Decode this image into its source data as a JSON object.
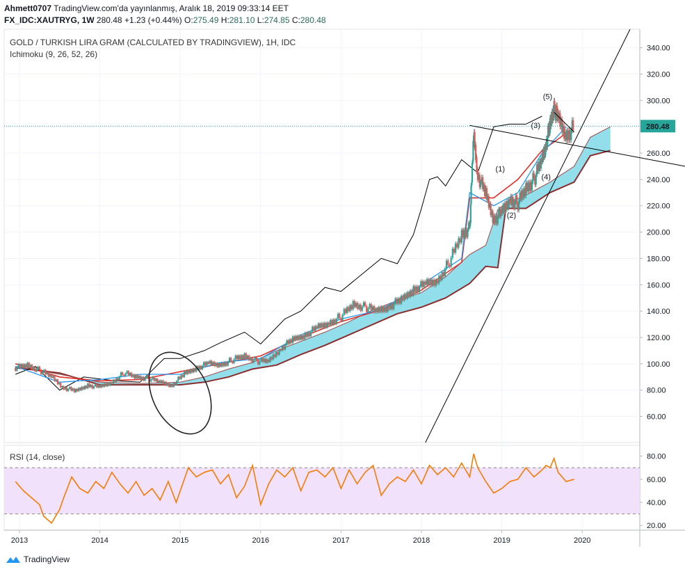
{
  "header": {
    "author": "Ahmett0707",
    "published": "TradingView.com'da yayınlanmış, Aralık 18, 2019 09:33:14 EET",
    "symbol": "FX_IDC:XAUTRYG, 1W",
    "last": "280.48",
    "change": "+1.23 (+0.44%)",
    "o_label": "O:",
    "o": "275.49",
    "h_label": "H:",
    "h": "281.10",
    "l_label": "L:",
    "l": "274.85",
    "c_label": "C:",
    "c": "280.48"
  },
  "brand": "TradingView",
  "colors": {
    "bull": "#26a69a",
    "bear": "#ef5350",
    "cloud": "#7fd8e8",
    "kijun": "#e0302a",
    "tenkan": "#2196f3",
    "chikou": "#000000",
    "senkou_b": "#8b2d2d",
    "rsi": "#f57c00",
    "rsi_band": "#f1e1fb",
    "price_line": "#26a69a"
  },
  "chart_data": [
    {
      "type": "line",
      "title": "GOLD / TURKISH LIRA GRAM (CALCULATED BY TRADINGVIEW), 1H, IDC",
      "indicator": "Ichimoku (9, 26, 52, 26)",
      "xlabel": "",
      "ylabel": "",
      "ylim": [
        40,
        350
      ],
      "x_ticks": [
        "2013",
        "2014",
        "2015",
        "2016",
        "2017",
        "2018",
        "2019",
        "2020"
      ],
      "y_ticks": [
        "60.00",
        "80.00",
        "100.00",
        "120.00",
        "140.00",
        "160.00",
        "180.00",
        "200.00",
        "220.00",
        "240.00",
        "260.00",
        "280.00",
        "300.00",
        "320.00",
        "340.00"
      ],
      "last_price_label": "280.48",
      "last_price": 280.48,
      "price_series": {
        "x": [
          2012.95,
          2013.1,
          2013.25,
          2013.4,
          2013.55,
          2013.7,
          2013.85,
          2014.0,
          2014.15,
          2014.3,
          2014.45,
          2014.6,
          2014.75,
          2014.9,
          2015.05,
          2015.2,
          2015.35,
          2015.5,
          2015.65,
          2015.8,
          2015.95,
          2016.1,
          2016.25,
          2016.4,
          2016.55,
          2016.7,
          2016.85,
          2017.0,
          2017.15,
          2017.3,
          2017.45,
          2017.6,
          2017.75,
          2017.9,
          2018.05,
          2018.2,
          2018.35,
          2018.5,
          2018.6,
          2018.65,
          2018.7,
          2018.8,
          2018.9,
          2019.0,
          2019.1,
          2019.2,
          2019.3,
          2019.4,
          2019.5,
          2019.55,
          2019.6,
          2019.65,
          2019.7,
          2019.8,
          2019.9
        ],
        "y": [
          97,
          99,
          95,
          90,
          82,
          79,
          84,
          82,
          86,
          93,
          90,
          89,
          86,
          84,
          92,
          97,
          100,
          99,
          103,
          106,
          102,
          102,
          112,
          118,
          122,
          127,
          131,
          136,
          145,
          143,
          140,
          144,
          148,
          157,
          160,
          163,
          178,
          198,
          203,
          275,
          244,
          228,
          210,
          214,
          225,
          222,
          233,
          240,
          255,
          268,
          280,
          296,
          285,
          273,
          280
        ]
      },
      "ichimoku": {
        "span_a": {
          "x": [
            2012.95,
            2013.5,
            2014.0,
            2014.5,
            2015.0,
            2015.3,
            2015.6,
            2015.9,
            2016.2,
            2016.5,
            2016.8,
            2017.1,
            2017.4,
            2017.7,
            2018.0,
            2018.3,
            2018.6,
            2018.8,
            2018.95,
            2019.05,
            2019.3,
            2019.6,
            2019.9,
            2020.1,
            2020.35
          ],
          "y": [
            98,
            92,
            86,
            85,
            86,
            90,
            96,
            101,
            110,
            117,
            124,
            132,
            141,
            148,
            154,
            166,
            183,
            190,
            217,
            222,
            228,
            238,
            250,
            272,
            280
          ]
        },
        "span_b": {
          "x": [
            2012.95,
            2013.5,
            2014.0,
            2014.5,
            2015.0,
            2015.3,
            2015.6,
            2015.9,
            2016.2,
            2016.5,
            2016.8,
            2017.1,
            2017.4,
            2017.7,
            2018.0,
            2018.3,
            2018.6,
            2018.8,
            2018.95,
            2019.05,
            2019.3,
            2019.6,
            2019.9,
            2020.1,
            2020.35
          ],
          "y": [
            97,
            93,
            84,
            84,
            84,
            86,
            90,
            96,
            99,
            107,
            114,
            122,
            130,
            138,
            143,
            150,
            161,
            174,
            173,
            218,
            218,
            230,
            238,
            258,
            262
          ]
        },
        "kijun": {
          "x": [
            2012.95,
            2013.5,
            2014.0,
            2014.5,
            2015.0,
            2015.5,
            2016.0,
            2016.5,
            2017.0,
            2017.5,
            2018.0,
            2018.5,
            2018.6,
            2018.9,
            2019.2,
            2019.5,
            2019.8
          ],
          "y": [
            100,
            90,
            87,
            88,
            94,
            100,
            106,
            120,
            132,
            141,
            156,
            177,
            226,
            226,
            240,
            262,
            275
          ]
        },
        "tenkan": {
          "x": [
            2012.95,
            2013.5,
            2014.0,
            2014.5,
            2015.0,
            2015.5,
            2016.0,
            2016.5,
            2017.0,
            2017.5,
            2018.0,
            2018.5,
            2018.6,
            2018.9,
            2019.2,
            2019.5,
            2019.8
          ],
          "y": [
            98,
            86,
            88,
            92,
            92,
            101,
            104,
            122,
            134,
            141,
            160,
            180,
            230,
            220,
            230,
            260,
            280
          ]
        },
        "chikou": {
          "x": [
            2012.95,
            2013.2,
            2013.5,
            2013.8,
            2014.2,
            2014.5,
            2014.8,
            2015.0,
            2015.3,
            2015.5,
            2015.8,
            2016.0,
            2016.3,
            2016.5,
            2016.8,
            2017.0,
            2017.3,
            2017.5,
            2017.7,
            2017.9,
            2018.0,
            2018.1,
            2018.2,
            2018.3,
            2018.5,
            2018.7,
            2018.9,
            2019.1,
            2019.3,
            2019.5
          ],
          "y": [
            92,
            98,
            80,
            90,
            87,
            86,
            104,
            104,
            110,
            116,
            124,
            115,
            134,
            140,
            158,
            155,
            170,
            180,
            176,
            198,
            218,
            240,
            242,
            235,
            255,
            245,
            280,
            282,
            282,
            288
          ]
        }
      },
      "annotations": [
        {
          "label": "(1)",
          "x": 2018.98,
          "y": 246
        },
        {
          "label": "(2)",
          "x": 2019.12,
          "y": 211
        },
        {
          "label": "(3)",
          "x": 2019.42,
          "y": 279
        },
        {
          "label": "(4)",
          "x": 2019.55,
          "y": 240
        },
        {
          "label": "(5)",
          "x": 2019.57,
          "y": 301
        }
      ]
    },
    {
      "type": "line",
      "title": "",
      "indicator": "RSI (14, close)",
      "xlabel": "",
      "ylabel": "",
      "ylim": [
        16,
        86
      ],
      "y_ticks": [
        "20.00",
        "40.00",
        "60.00",
        "80.00"
      ],
      "bands": [
        30,
        70
      ],
      "series": [
        {
          "x": [
            2012.95,
            2013.05,
            2013.15,
            2013.25,
            2013.3,
            2013.4,
            2013.5,
            2013.55,
            2013.65,
            2013.75,
            2013.85,
            2013.95,
            2014.05,
            2014.15,
            2014.25,
            2014.35,
            2014.45,
            2014.55,
            2014.65,
            2014.75,
            2014.85,
            2014.95,
            2015.0,
            2015.1,
            2015.2,
            2015.3,
            2015.4,
            2015.5,
            2015.6,
            2015.7,
            2015.8,
            2015.9,
            2016.0,
            2016.1,
            2016.2,
            2016.3,
            2016.4,
            2016.5,
            2016.6,
            2016.7,
            2016.8,
            2016.9,
            2017.0,
            2017.1,
            2017.2,
            2017.3,
            2017.4,
            2017.5,
            2017.6,
            2017.7,
            2017.8,
            2017.9,
            2018.0,
            2018.1,
            2018.2,
            2018.3,
            2018.4,
            2018.5,
            2018.6,
            2018.65,
            2018.7,
            2018.8,
            2018.9,
            2019.0,
            2019.1,
            2019.2,
            2019.3,
            2019.4,
            2019.5,
            2019.55,
            2019.6,
            2019.65,
            2019.7,
            2019.8,
            2019.9
          ],
          "y": [
            58,
            50,
            44,
            38,
            28,
            22,
            34,
            44,
            62,
            52,
            48,
            58,
            52,
            66,
            56,
            48,
            58,
            46,
            52,
            42,
            58,
            40,
            50,
            70,
            62,
            66,
            68,
            56,
            64,
            44,
            54,
            72,
            38,
            56,
            68,
            62,
            70,
            50,
            66,
            68,
            62,
            70,
            52,
            68,
            56,
            66,
            72,
            46,
            56,
            62,
            58,
            68,
            56,
            72,
            64,
            70,
            62,
            74,
            62,
            82,
            70,
            58,
            48,
            52,
            58,
            60,
            70,
            62,
            68,
            72,
            70,
            78,
            66,
            58,
            60
          ]
        }
      ]
    }
  ]
}
